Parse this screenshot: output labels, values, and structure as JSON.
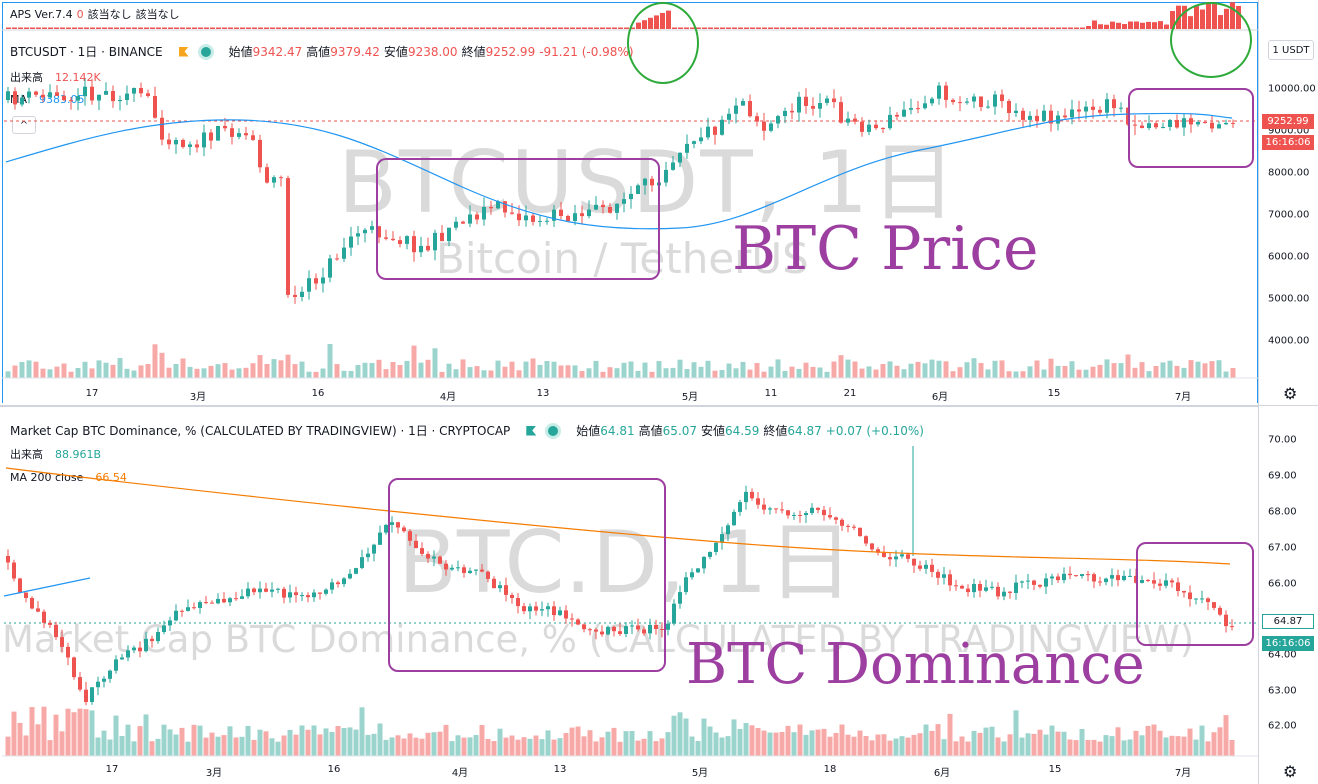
{
  "colors": {
    "up": "#26a69a",
    "down": "#ef5350",
    "ma_top": "#2196f3",
    "ma_bot": "#f57c00",
    "annotation": "#9c3fa0",
    "circle": "#2eaa3a"
  },
  "aps": {
    "title": "APS Ver.7.4",
    "v0": "0",
    "t1": "該当なし",
    "t2": "該当なし",
    "zero": "0"
  },
  "top": {
    "symbol": "BTCUSDT · 1日 · BINANCE",
    "open_label": "始値",
    "open": "9342.47",
    "high_label": "高値",
    "high": "9379.42",
    "low_label": "安値",
    "low": "9238.00",
    "close_label": "終値",
    "close": "9252.99",
    "change": "-91.21 (-0.98%)",
    "vol_label": "出来高",
    "vol": "12.142K",
    "ma_label": "MA",
    "ma": "9383.05",
    "collapse": "^",
    "unit": "1 USDT",
    "price_tag": "9252.99",
    "time_tag": "16:16:06",
    "yticks": [
      "10000.00",
      "9000.00",
      "8000.00",
      "7000.00",
      "6000.00",
      "5000.00",
      "4000.00"
    ],
    "xlabels": [
      "17",
      "3月",
      "16",
      "4月",
      "13",
      "5月",
      "11",
      "21",
      "6月",
      "15",
      "7月"
    ],
    "watermark": "BTCUSDT, 1日",
    "watermark_sub": "Bitcoin / TetherUS",
    "annotation": "BTC Price"
  },
  "bottom": {
    "symbol": "Market Cap BTC Dominance, % (CALCULATED BY TRADINGVIEW) · 1日 · CRYPTOCAP",
    "open_label": "始値",
    "open": "64.81",
    "high_label": "高値",
    "high": "65.07",
    "low_label": "安値",
    "low": "64.59",
    "close_label": "終値",
    "close": "64.87",
    "change": "+0.07 (+0.10%)",
    "vol_label": "出来高",
    "vol": "88.961B",
    "ma_label": "MA 200 close",
    "ma": "66.54",
    "price_tag": "64.87",
    "time_tag": "16:16:06",
    "yticks": [
      "70.00",
      "69.00",
      "68.00",
      "67.00",
      "66.00",
      "65.00",
      "64.00",
      "63.00",
      "62.00"
    ],
    "xlabels": [
      "17",
      "3月",
      "16",
      "4月",
      "13",
      "5月",
      "18",
      "6月",
      "15",
      "7月"
    ],
    "watermark": "BTC.D, 1日",
    "watermark_sub": "Market Cap BTC Dominance, % (CALCULATED BY TRADINGVIEW)",
    "annotation": "BTC Dominance"
  }
}
